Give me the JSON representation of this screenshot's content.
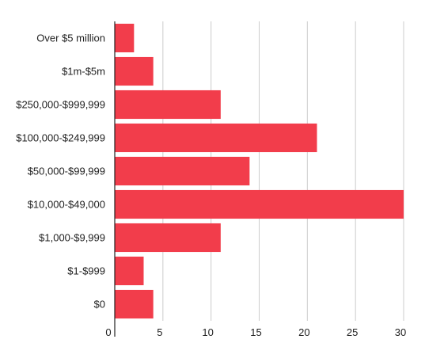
{
  "chart_data": {
    "type": "bar",
    "orientation": "horizontal",
    "title": "",
    "xlabel": "",
    "ylabel": "",
    "categories": [
      "Over $5 million",
      "$1m-$5m",
      "$250,000-$999,999",
      "$100,000-$249,999",
      "$50,000-$99,999",
      "$10,000-$49,000",
      "$1,000-$9,999",
      "$1-$999",
      "$0"
    ],
    "values": [
      2,
      4,
      11,
      21,
      14,
      30,
      11,
      3,
      4
    ],
    "xlim": [
      0,
      30
    ],
    "xticks": [
      "0",
      "5",
      "10",
      "15",
      "20",
      "25",
      "30"
    ],
    "grid": true,
    "legend": "none",
    "colors": {
      "bar": "#f23d4b",
      "grid": "#cccccc",
      "axis": "#222222",
      "text": "#222222"
    }
  }
}
